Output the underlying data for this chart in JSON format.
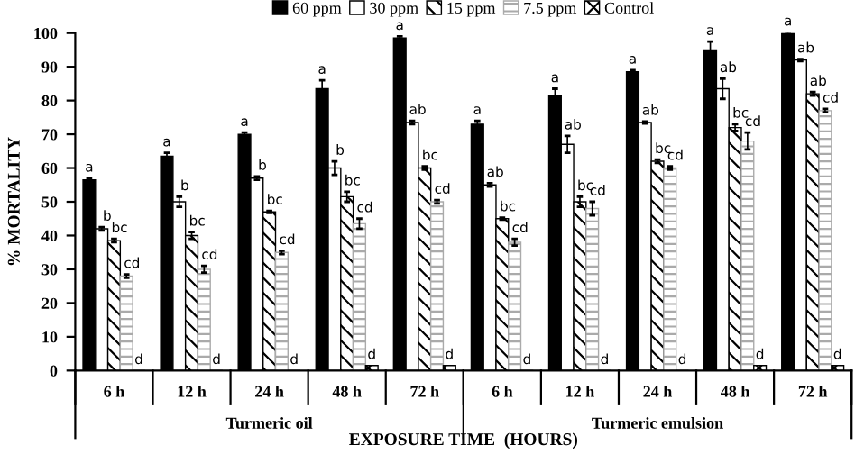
{
  "chart_data": {
    "type": "bar",
    "ylabel": "% MORTALITY",
    "xlabel": "EXPOSURE TIME  (HOURS)",
    "categories": [
      "6 h",
      "12 h",
      "24 h",
      "48 h",
      "72 h",
      "6 h",
      "12 h",
      "24 h",
      "48 h",
      "72 h"
    ],
    "annotations": [
      "Turmeric oil",
      "Turmeric emulsion"
    ],
    "series": [
      {
        "name": "60 ppm",
        "color": "#000000",
        "values": [
          56.5,
          63.5,
          70,
          83.5,
          98.5,
          73,
          81.5,
          88.5,
          95,
          100
        ],
        "errors": [
          0.5,
          1,
          0.5,
          2.5,
          0.5,
          1,
          2,
          0.5,
          2.5,
          0.3
        ],
        "value_labels": [
          "a",
          "a",
          "a",
          "a",
          "a",
          "a",
          "a",
          "a",
          "a",
          "a"
        ]
      },
      {
        "name": "30 ppm",
        "color": "#ffffff",
        "values": [
          42,
          50,
          57,
          60,
          73.5,
          55,
          67,
          73.5,
          83.5,
          92
        ],
        "errors": [
          0.5,
          1.5,
          0.5,
          2,
          0.5,
          0.5,
          2.5,
          0.3,
          3,
          0.3
        ],
        "value_labels": [
          "b",
          "b",
          "b",
          "b",
          "ab",
          "ab",
          "ab",
          "ab",
          "ab",
          "ab"
        ]
      },
      {
        "name": "15 ppm",
        "color": "#000000",
        "values": [
          38.5,
          40,
          47,
          51.5,
          60,
          45,
          50,
          62,
          72,
          82
        ],
        "errors": [
          0.5,
          1,
          0.3,
          1.5,
          0.5,
          0.3,
          1.5,
          0.5,
          1,
          0.5
        ],
        "value_labels": [
          "bc",
          "bc",
          "bc",
          "bc",
          "bc",
          "bc",
          "bc",
          "bc",
          "bc",
          "ab"
        ]
      },
      {
        "name": "7.5 ppm",
        "color": "#aaaaaa",
        "values": [
          28,
          30,
          35,
          43.5,
          50,
          38,
          48,
          60,
          68,
          77
        ],
        "errors": [
          0.5,
          1,
          0.5,
          1.5,
          0.5,
          1,
          2,
          0.5,
          2.5,
          0.5
        ],
        "value_labels": [
          "cd",
          "cd",
          "cd",
          "cd",
          "cd",
          "cd",
          "cd",
          "cd",
          "cd",
          "cd"
        ]
      },
      {
        "name": "Control",
        "color": "#000000",
        "values": [
          0,
          0,
          0,
          1.5,
          1.5,
          0,
          0,
          0,
          1.5,
          1.5
        ],
        "value_labels": [
          "d",
          "d",
          "d",
          "d",
          "d",
          "d",
          "d",
          "d",
          "d",
          "d"
        ]
      }
    ],
    "ylim": [
      0,
      100
    ],
    "yticks": [
      0,
      10,
      20,
      30,
      40,
      50,
      60,
      70,
      80,
      90,
      100
    ],
    "grid": false,
    "legend": "top"
  }
}
